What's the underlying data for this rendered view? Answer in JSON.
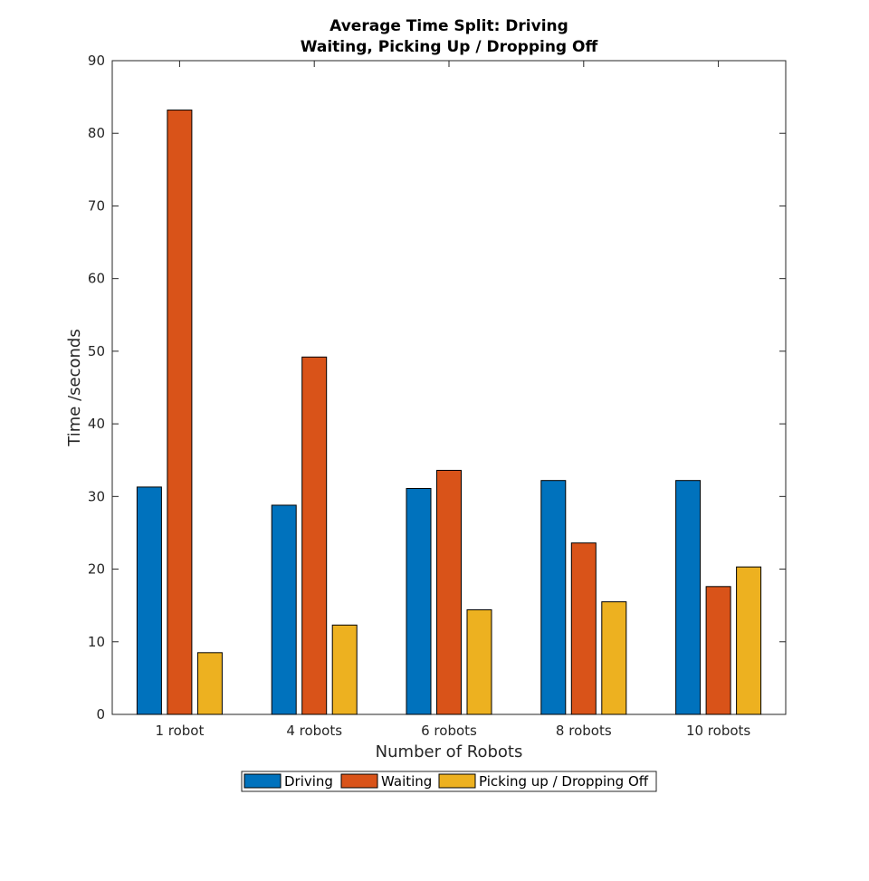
{
  "chart_data": {
    "type": "bar",
    "title_lines": [
      "Average Time Split: Driving",
      "Waiting, Picking Up / Dropping Off"
    ],
    "xlabel": "Number of Robots",
    "ylabel": "Time /seconds",
    "categories": [
      "1 robot",
      "4 robots",
      "6 robots",
      "8 robots",
      "10 robots"
    ],
    "ylim": [
      0,
      90
    ],
    "yticks": [
      0,
      10,
      20,
      30,
      40,
      50,
      60,
      70,
      80,
      90
    ],
    "grid": false,
    "legend_position": "bottom-outside",
    "series": [
      {
        "name": "Driving",
        "color": "#0072BD",
        "values": [
          31.3,
          28.8,
          31.1,
          32.2,
          32.2
        ]
      },
      {
        "name": "Waiting",
        "color": "#D95319",
        "values": [
          83.2,
          49.2,
          33.6,
          23.6,
          17.6
        ]
      },
      {
        "name": "Picking up / Dropping Off",
        "color": "#EDB120",
        "values": [
          8.5,
          12.3,
          14.4,
          15.5,
          20.3
        ]
      }
    ]
  }
}
